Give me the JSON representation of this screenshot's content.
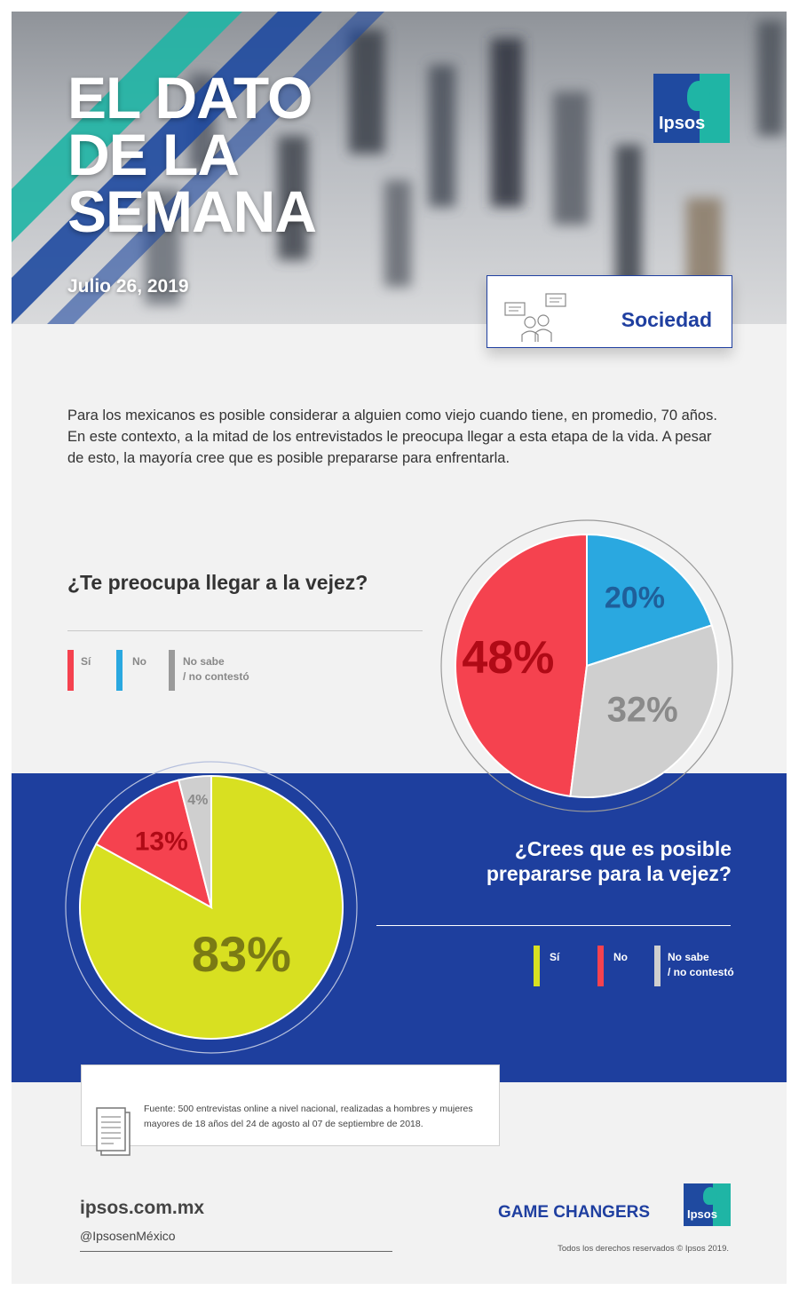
{
  "header": {
    "title": "EL DATO\nDE LA\nSEMANA",
    "date": "Julio 26, 2019",
    "logo_text": "Ipsos",
    "badge_label": "Sociedad"
  },
  "intro": "Para los mexicanos es posible considerar a alguien como viejo cuando tiene, en promedio, 70 años. En este contexto, a la mitad de los entrevistados le preocupa llegar a esta etapa de la vida. A pesar de esto, la mayoría cree que es posible prepararse para enfrentarla.",
  "q1": {
    "question": "¿Te preocupa llegar a la vejez?",
    "legend": [
      "Sí",
      "No",
      "No sabe\n/ no contestó"
    ]
  },
  "q2": {
    "question": "¿Crees que es posible\nprepararse para la vejez?",
    "legend": [
      "Sí",
      "No",
      "No sabe\n/ no contestó"
    ]
  },
  "colors": {
    "red": "#f5424f",
    "blue": "#2aa8e0",
    "gray": "#cfcfcf",
    "yellow": "#d8e021",
    "navy": "#1e3f9e",
    "teal": "#1fb5a5"
  },
  "chart_data": [
    {
      "type": "pie",
      "title": "¿Te preocupa llegar a la vejez?",
      "categories": [
        "Sí",
        "No",
        "No sabe / no contestó"
      ],
      "values": [
        48,
        20,
        32
      ],
      "labels": [
        "48%",
        "20%",
        "32%"
      ],
      "colors": [
        "#f5424f",
        "#2aa8e0",
        "#cfcfcf"
      ],
      "label_colors": [
        "#b00a16",
        "#1f5f9a",
        "#8a8a8a"
      ]
    },
    {
      "type": "pie",
      "title": "¿Crees que es posible prepararse para la vejez?",
      "categories": [
        "Sí",
        "No",
        "No sabe / no contestó"
      ],
      "values": [
        83,
        13,
        4
      ],
      "labels": [
        "83%",
        "13%",
        "4%"
      ],
      "colors": [
        "#d8e021",
        "#f5424f",
        "#cfcfcf"
      ],
      "label_colors": [
        "#7a7a14",
        "#b00a16",
        "#8a8a8a"
      ]
    }
  ],
  "source": "Fuente: 500 entrevistas online a nivel nacional, realizadas a hombres y mujeres mayores de 18 años del 24 de agosto al 07 de septiembre de 2018.",
  "footer": {
    "site": "ipsos.com.mx",
    "handle": "@IpsosenMéxico",
    "tagline": "GAME CHANGERS",
    "logo_text": "Ipsos",
    "rights": "Todos los derechos reservados © Ipsos 2019."
  }
}
